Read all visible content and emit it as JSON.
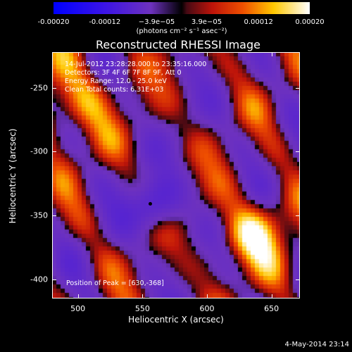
{
  "colorbar": {
    "tick_labels": [
      "-0.00020",
      "-0.00012",
      "−3.9e−05",
      "3.9e−05",
      "0.00012",
      "0.00020"
    ],
    "tick_values": [
      -0.0002,
      -0.00012,
      -3.9e-05,
      3.9e-05,
      0.00012,
      0.0002
    ],
    "units": "(photons cm⁻² s⁻¹ asec⁻²)",
    "range": [
      -0.0002,
      0.0002
    ]
  },
  "title": "Reconstructed RHESSI Image",
  "info": {
    "time_range": "14-Jul-2012 23:28:28.000 to 23:35:16.000",
    "detectors": "Detectors: 3F 4F 6F 7F 8F 9F, Att 0",
    "energy": "Energy Range: 12.0 - 25.0 keV",
    "method": "Clean    Total counts: 6.31E+03",
    "peak": "Position of Peak = [630,-368]"
  },
  "axes": {
    "xlabel": "Heliocentric X (arcsec)",
    "ylabel": "Heliocentric Y (arcsec)",
    "xticks": [
      "500",
      "550",
      "600",
      "650"
    ],
    "xtick_values": [
      500,
      550,
      600,
      650
    ],
    "yticks": [
      "-250",
      "-300",
      "-350",
      "-400"
    ],
    "ytick_values": [
      -250,
      -300,
      -350,
      -400
    ],
    "xlim": [
      480,
      672
    ],
    "ylim": [
      -415,
      -222
    ]
  },
  "timestamp": "4-May-2014 23:14",
  "chart_data": {
    "type": "heatmap",
    "title": "Reconstructed RHESSI Image",
    "xlabel": "Heliocentric X (arcsec)",
    "ylabel": "Heliocentric Y (arcsec)",
    "xlim": [
      480,
      672
    ],
    "ylim": [
      -415,
      -222
    ],
    "colormap": "blue-purple-red-yellow-white",
    "value_range": [
      -0.0002,
      0.0002
    ],
    "peak_position": [
      630,
      -368
    ],
    "min_marker": [
      556,
      -341
    ],
    "colors": {
      "low": "#0000ff",
      "mid": "#7f3fbf",
      "high": "#ffffff",
      "background": "#000000"
    }
  }
}
